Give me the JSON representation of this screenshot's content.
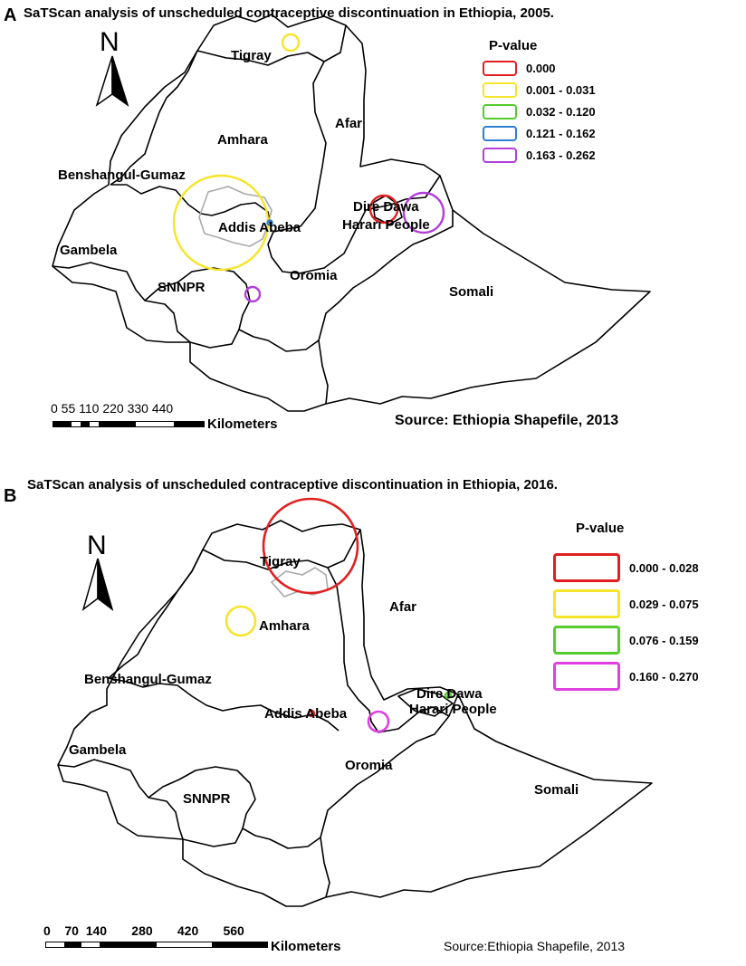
{
  "panels": [
    {
      "letter": "A",
      "title": "SaTScan analysis of unscheduled contraceptive discontinuation in Ethiopia, 2005.",
      "north": "N",
      "regions": [
        "Tigray",
        "Afar",
        "Amhara",
        "Benshangul-Gumaz",
        "Addis Abeba",
        "Dire Dawa",
        "Harari People",
        "Gambela",
        "Oromia",
        "SNNPR",
        "Somali"
      ],
      "legend": {
        "title": "P-value",
        "items": [
          {
            "label": "0.000",
            "color": "#e02020"
          },
          {
            "label": "0.001 - 0.031",
            "color": "#f5e52a"
          },
          {
            "label": "0.032 - 0.120",
            "color": "#55cc2b"
          },
          {
            "label": "0.121 - 0.162",
            "color": "#2f7fd0"
          },
          {
            "label": "0.163 - 0.262",
            "color": "#b23fd8"
          }
        ]
      },
      "clusters": [
        {
          "near": "Tigray",
          "p_class": "0.001 - 0.031",
          "color": "#f5e52a"
        },
        {
          "near": "Addis Abeba",
          "p_class": "0.001 - 0.031",
          "color": "#f5e52a"
        },
        {
          "near": "Dire Dawa",
          "p_class": "0.000",
          "color": "#e02020"
        },
        {
          "near": "Harari People",
          "p_class": "0.163 - 0.262",
          "color": "#b23fd8"
        },
        {
          "near": "Oromia",
          "p_class": "0.163 - 0.262",
          "color": "#b23fd8"
        },
        {
          "near": "Addis Abeba",
          "p_class": "0.121 - 0.162",
          "color": "#2f7fd0"
        }
      ],
      "scale": {
        "numbers": "0 55 110   220   330   440",
        "unit": "Kilometers"
      },
      "source": "Source: Ethiopia Shapefile, 2013"
    },
    {
      "letter": "B",
      "title": "SaTScan analysis of unscheduled contraceptive discontinuation in Ethiopia, 2016.",
      "north": "N",
      "regions": [
        "Tigray",
        "Afar",
        "Amhara",
        "Benshangul-Gumaz",
        "Addis Abeba",
        "Dire Dawa",
        "Harari People",
        "Gambela",
        "Oromia",
        "SNNPR",
        "Somali"
      ],
      "legend": {
        "title": "P-value",
        "items": [
          {
            "label": "0.000 - 0.028",
            "color": "#e02020"
          },
          {
            "label": "0.029 - 0.075",
            "color": "#f5e52a"
          },
          {
            "label": "0.076 - 0.159",
            "color": "#55cc2b"
          },
          {
            "label": "0.160 - 0.270",
            "color": "#e040e0"
          }
        ]
      },
      "clusters": [
        {
          "near": "Tigray",
          "p_class": "0.000 - 0.028",
          "color": "#e02020"
        },
        {
          "near": "Amhara",
          "p_class": "0.029 - 0.075",
          "color": "#f5e52a"
        },
        {
          "near": "Oromia",
          "p_class": "0.160 - 0.270",
          "color": "#e040e0"
        },
        {
          "near": "Addis Abeba",
          "p_class": "0.000 - 0.028",
          "color": "#e02020"
        },
        {
          "near": "Dire Dawa",
          "p_class": "0.076 - 0.159",
          "color": "#55cc2b"
        }
      ],
      "scale": {
        "numbers": "0    70  140       280       420       560",
        "unit": "Kilometers"
      },
      "source": "Source:Ethiopia Shapefile, 2013"
    }
  ]
}
